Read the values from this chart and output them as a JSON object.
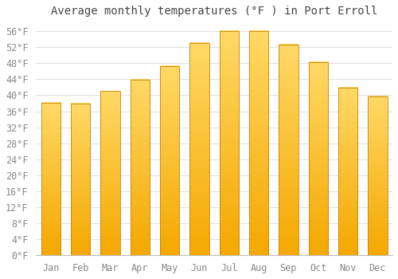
{
  "title": "Average monthly temperatures (°F ) in Port Erroll",
  "months": [
    "Jan",
    "Feb",
    "Mar",
    "Apr",
    "May",
    "Jun",
    "Jul",
    "Aug",
    "Sep",
    "Oct",
    "Nov",
    "Dec"
  ],
  "values": [
    38.1,
    37.9,
    41.0,
    43.9,
    47.3,
    53.1,
    56.1,
    56.1,
    52.7,
    48.2,
    41.9,
    39.7
  ],
  "bar_color_bottom": "#F5A800",
  "bar_color_top": "#FFD966",
  "bar_edge_color": "#C8830A",
  "background_color": "#FFFFFF",
  "grid_color": "#E0E0E0",
  "text_color": "#888888",
  "title_color": "#444444",
  "ylim": [
    0,
    58
  ],
  "yticks": [
    0,
    4,
    8,
    12,
    16,
    20,
    24,
    28,
    32,
    36,
    40,
    44,
    48,
    52,
    56
  ],
  "title_fontsize": 10,
  "tick_fontsize": 8.5
}
